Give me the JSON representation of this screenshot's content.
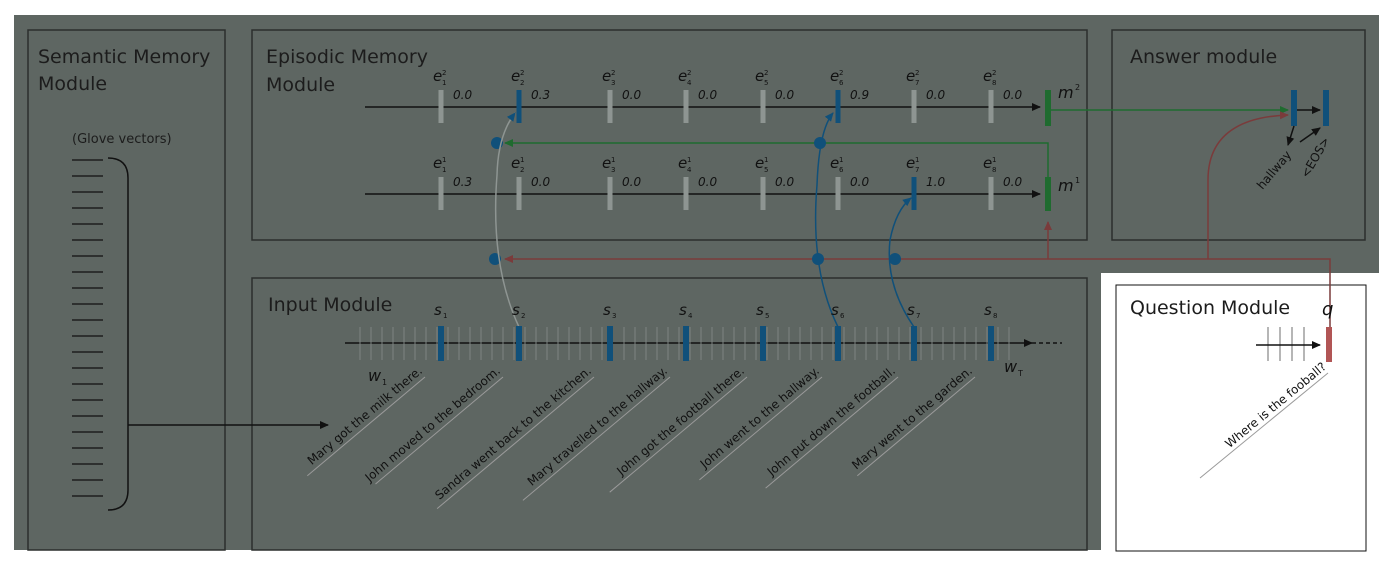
{
  "semantic": {
    "title_line1": "Semantic Memory",
    "title_line2": "Module",
    "vectors_label": "(Glove vectors)"
  },
  "episodic": {
    "title_line1": "Episodic Memory",
    "title_line2": "Module",
    "pass2_labels": [
      "e",
      "e",
      "e",
      "e",
      "e",
      "e",
      "e",
      "e"
    ],
    "pass2_values": [
      "0.0",
      "0.3",
      "0.0",
      "0.0",
      "0.0",
      "0.9",
      "0.0",
      "0.0"
    ],
    "pass1_values": [
      "0.3",
      "0.0",
      "0.0",
      "0.0",
      "0.0",
      "0.0",
      "1.0",
      "0.0"
    ],
    "memory2": "m",
    "memory1": "m"
  },
  "answer": {
    "title": "Answer module",
    "token1": "hallway",
    "token2": "<EOS>"
  },
  "input": {
    "title": "Input Module",
    "s_label": "s",
    "w_start": "w",
    "w_end": "w",
    "sentences": [
      "Mary got the milk there.",
      "John moved to the bedroom.",
      "Sandra went back to the kitchen.",
      "Mary travelled to the hallway.",
      "John got the football there.",
      "John went to the hallway.",
      "John put down the football.",
      "Mary went to the garden."
    ]
  },
  "question": {
    "title": "Question Module",
    "q_label": "q",
    "text": "Where is the fooball?"
  },
  "colors": {
    "overlay": "#5e6662",
    "blue": "#10507a",
    "green": "#1f6b2f",
    "red": "#7a3b3b",
    "gray": "#8e9592"
  }
}
